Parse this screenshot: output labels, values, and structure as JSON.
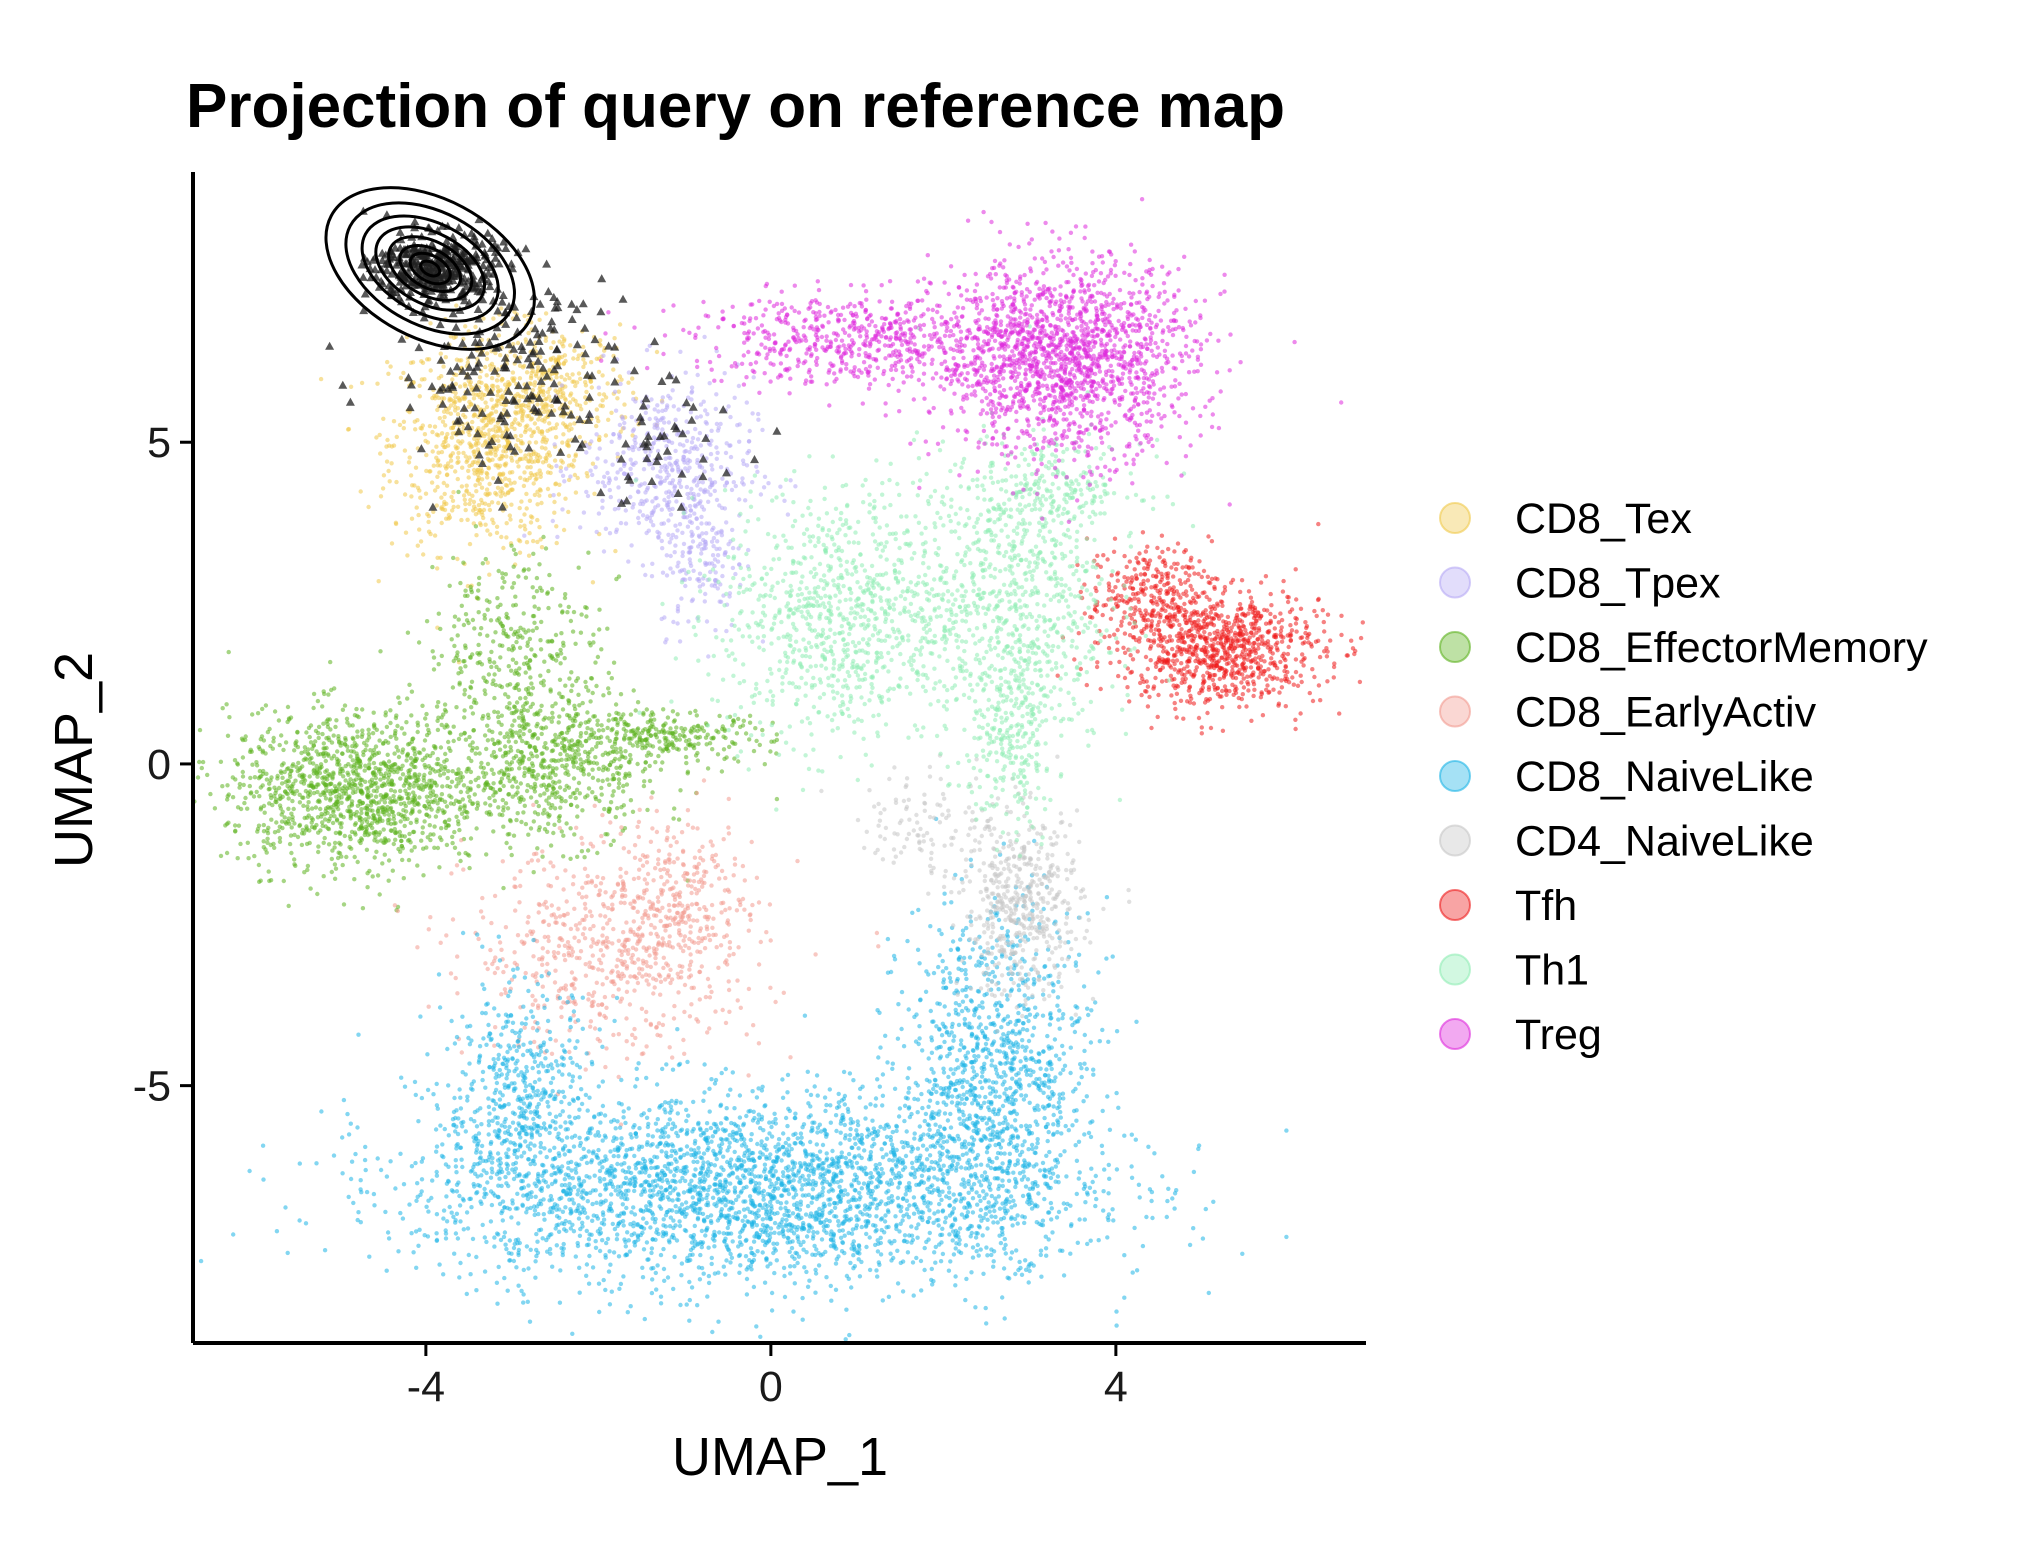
{
  "chart_data": {
    "type": "scatter",
    "title": "Projection of query on reference map",
    "xlabel": "UMAP_1",
    "ylabel": "UMAP_2",
    "xlim": [
      -6.7,
      6.9
    ],
    "ylim": [
      -9.0,
      9.2
    ],
    "xticks": [
      -4,
      0,
      4
    ],
    "xtick_labels": [
      "-4",
      "0",
      "4"
    ],
    "yticks": [
      -5,
      0,
      5
    ],
    "ytick_labels": [
      "-5",
      "0",
      "5"
    ],
    "grid": false,
    "legend_position": "right",
    "series": [
      {
        "name": "CD8_Tex",
        "color": "#F0C94B",
        "clusters": [
          {
            "cx": -3.3,
            "cy": 5.0,
            "sx": 0.55,
            "sy": 0.85,
            "n": 900
          },
          {
            "cx": -2.5,
            "cy": 5.8,
            "sx": 0.45,
            "sy": 0.5,
            "n": 300
          }
        ]
      },
      {
        "name": "CD8_Tpex",
        "color": "#B6A9F5",
        "clusters": [
          {
            "cx": -1.2,
            "cy": 4.6,
            "sx": 0.5,
            "sy": 0.7,
            "n": 500
          },
          {
            "cx": -0.8,
            "cy": 3.2,
            "sx": 0.25,
            "sy": 0.6,
            "n": 150
          }
        ]
      },
      {
        "name": "CD8_EffectorMemory",
        "color": "#5DB31F",
        "clusters": [
          {
            "cx": -4.8,
            "cy": -0.4,
            "sx": 0.75,
            "sy": 0.6,
            "n": 1300
          },
          {
            "cx": -2.5,
            "cy": 0.0,
            "sx": 0.6,
            "sy": 0.6,
            "n": 600
          },
          {
            "cx": -3.0,
            "cy": 1.8,
            "sx": 0.5,
            "sy": 0.8,
            "n": 350
          },
          {
            "cx": -1.2,
            "cy": 0.4,
            "sx": 0.6,
            "sy": 0.2,
            "n": 250
          }
        ]
      },
      {
        "name": "CD8_EarlyActiv",
        "color": "#F29A90",
        "clusters": [
          {
            "cx": -1.8,
            "cy": -2.9,
            "sx": 0.85,
            "sy": 0.8,
            "n": 650
          },
          {
            "cx": -1.0,
            "cy": -2.0,
            "sx": 0.35,
            "sy": 0.6,
            "n": 200
          }
        ]
      },
      {
        "name": "CD8_NaiveLike",
        "color": "#1DB4E6",
        "clusters": [
          {
            "cx": -0.3,
            "cy": -6.6,
            "sx": 1.9,
            "sy": 0.75,
            "n": 3000
          },
          {
            "cx": 2.6,
            "cy": -4.8,
            "sx": 0.55,
            "sy": 1.3,
            "n": 1100
          },
          {
            "cx": -2.9,
            "cy": -5.2,
            "sx": 0.45,
            "sy": 0.9,
            "n": 500
          }
        ]
      },
      {
        "name": "CD4_NaiveLike",
        "color": "#C6C6C6",
        "clusters": [
          {
            "cx": 2.9,
            "cy": -2.2,
            "sx": 0.35,
            "sy": 0.7,
            "n": 500
          },
          {
            "cx": 1.8,
            "cy": -0.9,
            "sx": 0.4,
            "sy": 0.4,
            "n": 100
          }
        ]
      },
      {
        "name": "Tfh",
        "color": "#EE1B1B",
        "clusters": [
          {
            "cx": 5.2,
            "cy": 1.8,
            "sx": 0.6,
            "sy": 0.45,
            "n": 900
          },
          {
            "cx": 4.4,
            "cy": 2.7,
            "sx": 0.35,
            "sy": 0.35,
            "n": 250
          }
        ]
      },
      {
        "name": "Th1",
        "color": "#8FEDB4",
        "clusters": [
          {
            "cx": 0.8,
            "cy": 2.3,
            "sx": 0.7,
            "sy": 1.0,
            "n": 900
          },
          {
            "cx": 2.8,
            "cy": 2.5,
            "sx": 0.55,
            "sy": 1.2,
            "n": 800
          },
          {
            "cx": 2.8,
            "cy": 0.2,
            "sx": 0.25,
            "sy": 0.6,
            "n": 200
          },
          {
            "cx": 3.3,
            "cy": 4.3,
            "sx": 0.5,
            "sy": 0.35,
            "n": 200
          }
        ]
      },
      {
        "name": "Treg",
        "color": "#DE29DC",
        "clusters": [
          {
            "cx": 3.4,
            "cy": 6.3,
            "sx": 0.75,
            "sy": 0.75,
            "n": 1700
          },
          {
            "cx": 1.0,
            "cy": 6.6,
            "sx": 0.95,
            "sy": 0.35,
            "n": 600
          }
        ]
      }
    ],
    "query": {
      "name": "query",
      "color": "#222222",
      "clusters": [
        {
          "cx": -3.9,
          "cy": 7.7,
          "sx": 0.35,
          "sy": 0.28,
          "n": 350
        },
        {
          "cx": -3.0,
          "cy": 6.2,
          "sx": 0.7,
          "sy": 0.8,
          "n": 180
        },
        {
          "cx": -1.3,
          "cy": 5.0,
          "sx": 0.5,
          "sy": 0.5,
          "n": 40
        }
      ]
    },
    "contours": {
      "center": [
        -3.95,
        7.7
      ],
      "radii_x": [
        0.12,
        0.25,
        0.38,
        0.52,
        0.68,
        0.85,
        1.05,
        1.3
      ],
      "radii_y": [
        0.1,
        0.2,
        0.3,
        0.42,
        0.55,
        0.7,
        0.88,
        1.08
      ]
    }
  }
}
